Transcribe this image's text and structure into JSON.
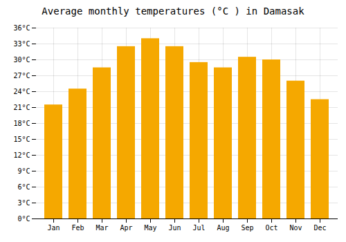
{
  "chart_data": {
    "type": "bar",
    "title": "Average monthly temperatures (°C ) in Damasak",
    "categories": [
      "Jan",
      "Feb",
      "Mar",
      "Apr",
      "May",
      "Jun",
      "Jul",
      "Aug",
      "Sep",
      "Oct",
      "Nov",
      "Dec"
    ],
    "values": [
      21.5,
      24.5,
      28.5,
      32.5,
      34.0,
      32.5,
      29.5,
      28.5,
      30.5,
      30.0,
      26.0,
      22.5
    ],
    "color": "#F5A800",
    "ylim": [
      0,
      36
    ],
    "yticks": [
      {
        "value": 0,
        "label": "0°C"
      },
      {
        "value": 3,
        "label": "3°C"
      },
      {
        "value": 6,
        "label": "6°C"
      },
      {
        "value": 9,
        "label": "9°C"
      },
      {
        "value": 12,
        "label": "12°C"
      },
      {
        "value": 15,
        "label": "15°C"
      },
      {
        "value": 18,
        "label": "18°C"
      },
      {
        "value": 21,
        "label": "21°C"
      },
      {
        "value": 24,
        "label": "24°C"
      },
      {
        "value": 27,
        "label": "27°C"
      },
      {
        "value": 30,
        "label": "30°C"
      },
      {
        "value": 33,
        "label": "33°C"
      },
      {
        "value": 36,
        "label": "36°C"
      }
    ],
    "grid": true
  }
}
